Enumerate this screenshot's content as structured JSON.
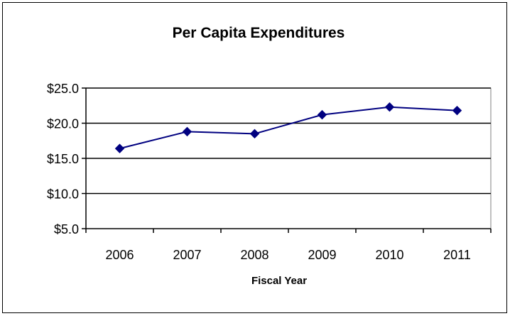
{
  "chart_data": {
    "type": "line",
    "title": "Per Capita Expenditures",
    "xlabel": "Fiscal Year",
    "ylabel": "",
    "categories": [
      "2006",
      "2007",
      "2008",
      "2009",
      "2010",
      "2011"
    ],
    "series": [
      {
        "values": [
          16.4,
          18.8,
          18.5,
          21.2,
          22.3,
          21.8
        ]
      }
    ],
    "y_ticks": [
      "$5.0",
      "$10.0",
      "$15.0",
      "$20.0",
      "$25.0"
    ],
    "ylim": [
      5,
      25
    ],
    "grid": true,
    "legend": "none",
    "colors": {
      "series": "#000080",
      "axis": "#000000",
      "grid": "#000000",
      "plot_border": "#808080"
    }
  }
}
